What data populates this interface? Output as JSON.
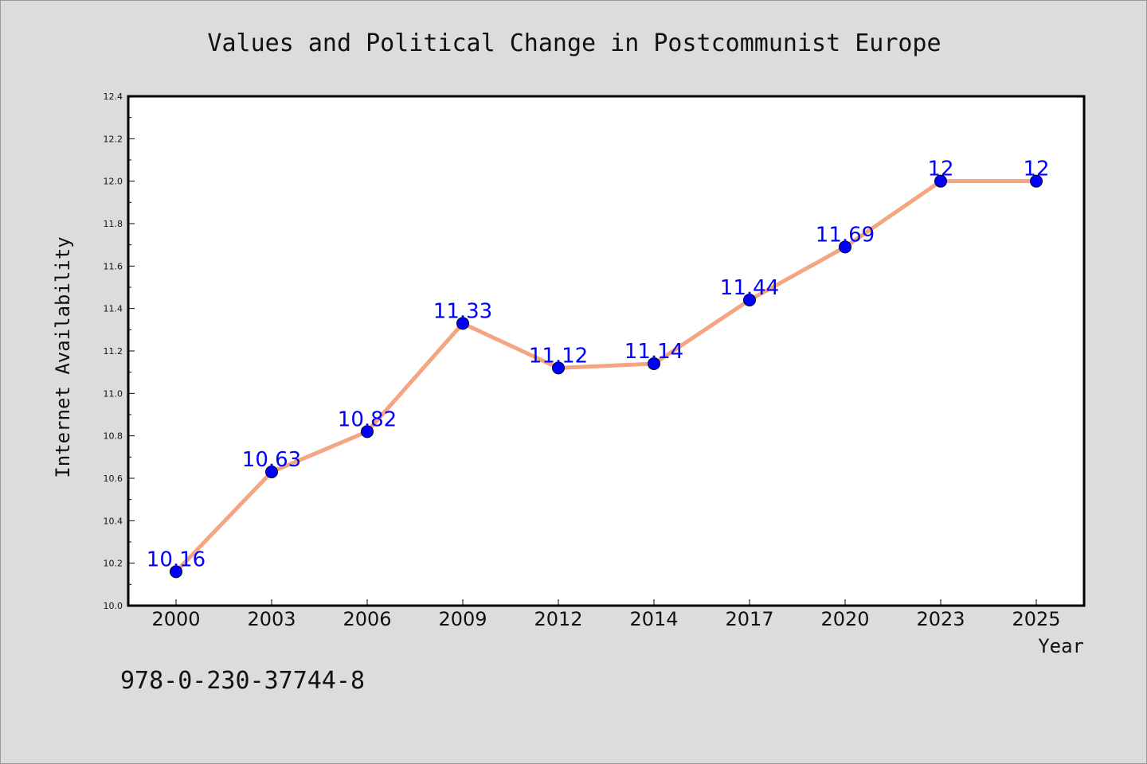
{
  "chart_data": {
    "type": "line",
    "title": "Values and Political Change in Postcommunist Europe",
    "xlabel": "Year",
    "ylabel": "Internet Availability",
    "categories": [
      "2000",
      "2003",
      "2006",
      "2009",
      "2012",
      "2014",
      "2017",
      "2020",
      "2023",
      "2025"
    ],
    "series": [
      {
        "values": [
          10.16,
          10.63,
          10.82,
          11.33,
          11.12,
          11.14,
          11.44,
          11.69,
          12,
          12
        ],
        "labels": [
          "10.16",
          "10.63",
          "10.82",
          "11.33",
          "11.12",
          "11.14",
          "11.44",
          "11.69",
          "12",
          "12"
        ]
      }
    ],
    "ylim": [
      10.0,
      12.4
    ],
    "y_ticks": [
      "10.0",
      "10.2",
      "10.4",
      "10.6",
      "10.8",
      "11.0",
      "11.2",
      "11.4",
      "11.6",
      "11.8",
      "12.0",
      "12.2",
      "12.4"
    ],
    "grid": false,
    "colors": {
      "line": "#f4a582",
      "marker": "#0000ff",
      "data_label": "#0000ff",
      "background": "#dcdcdc",
      "plot_background": "#ffffff"
    }
  },
  "footer": {
    "isbn": "978-0-230-37744-8"
  }
}
